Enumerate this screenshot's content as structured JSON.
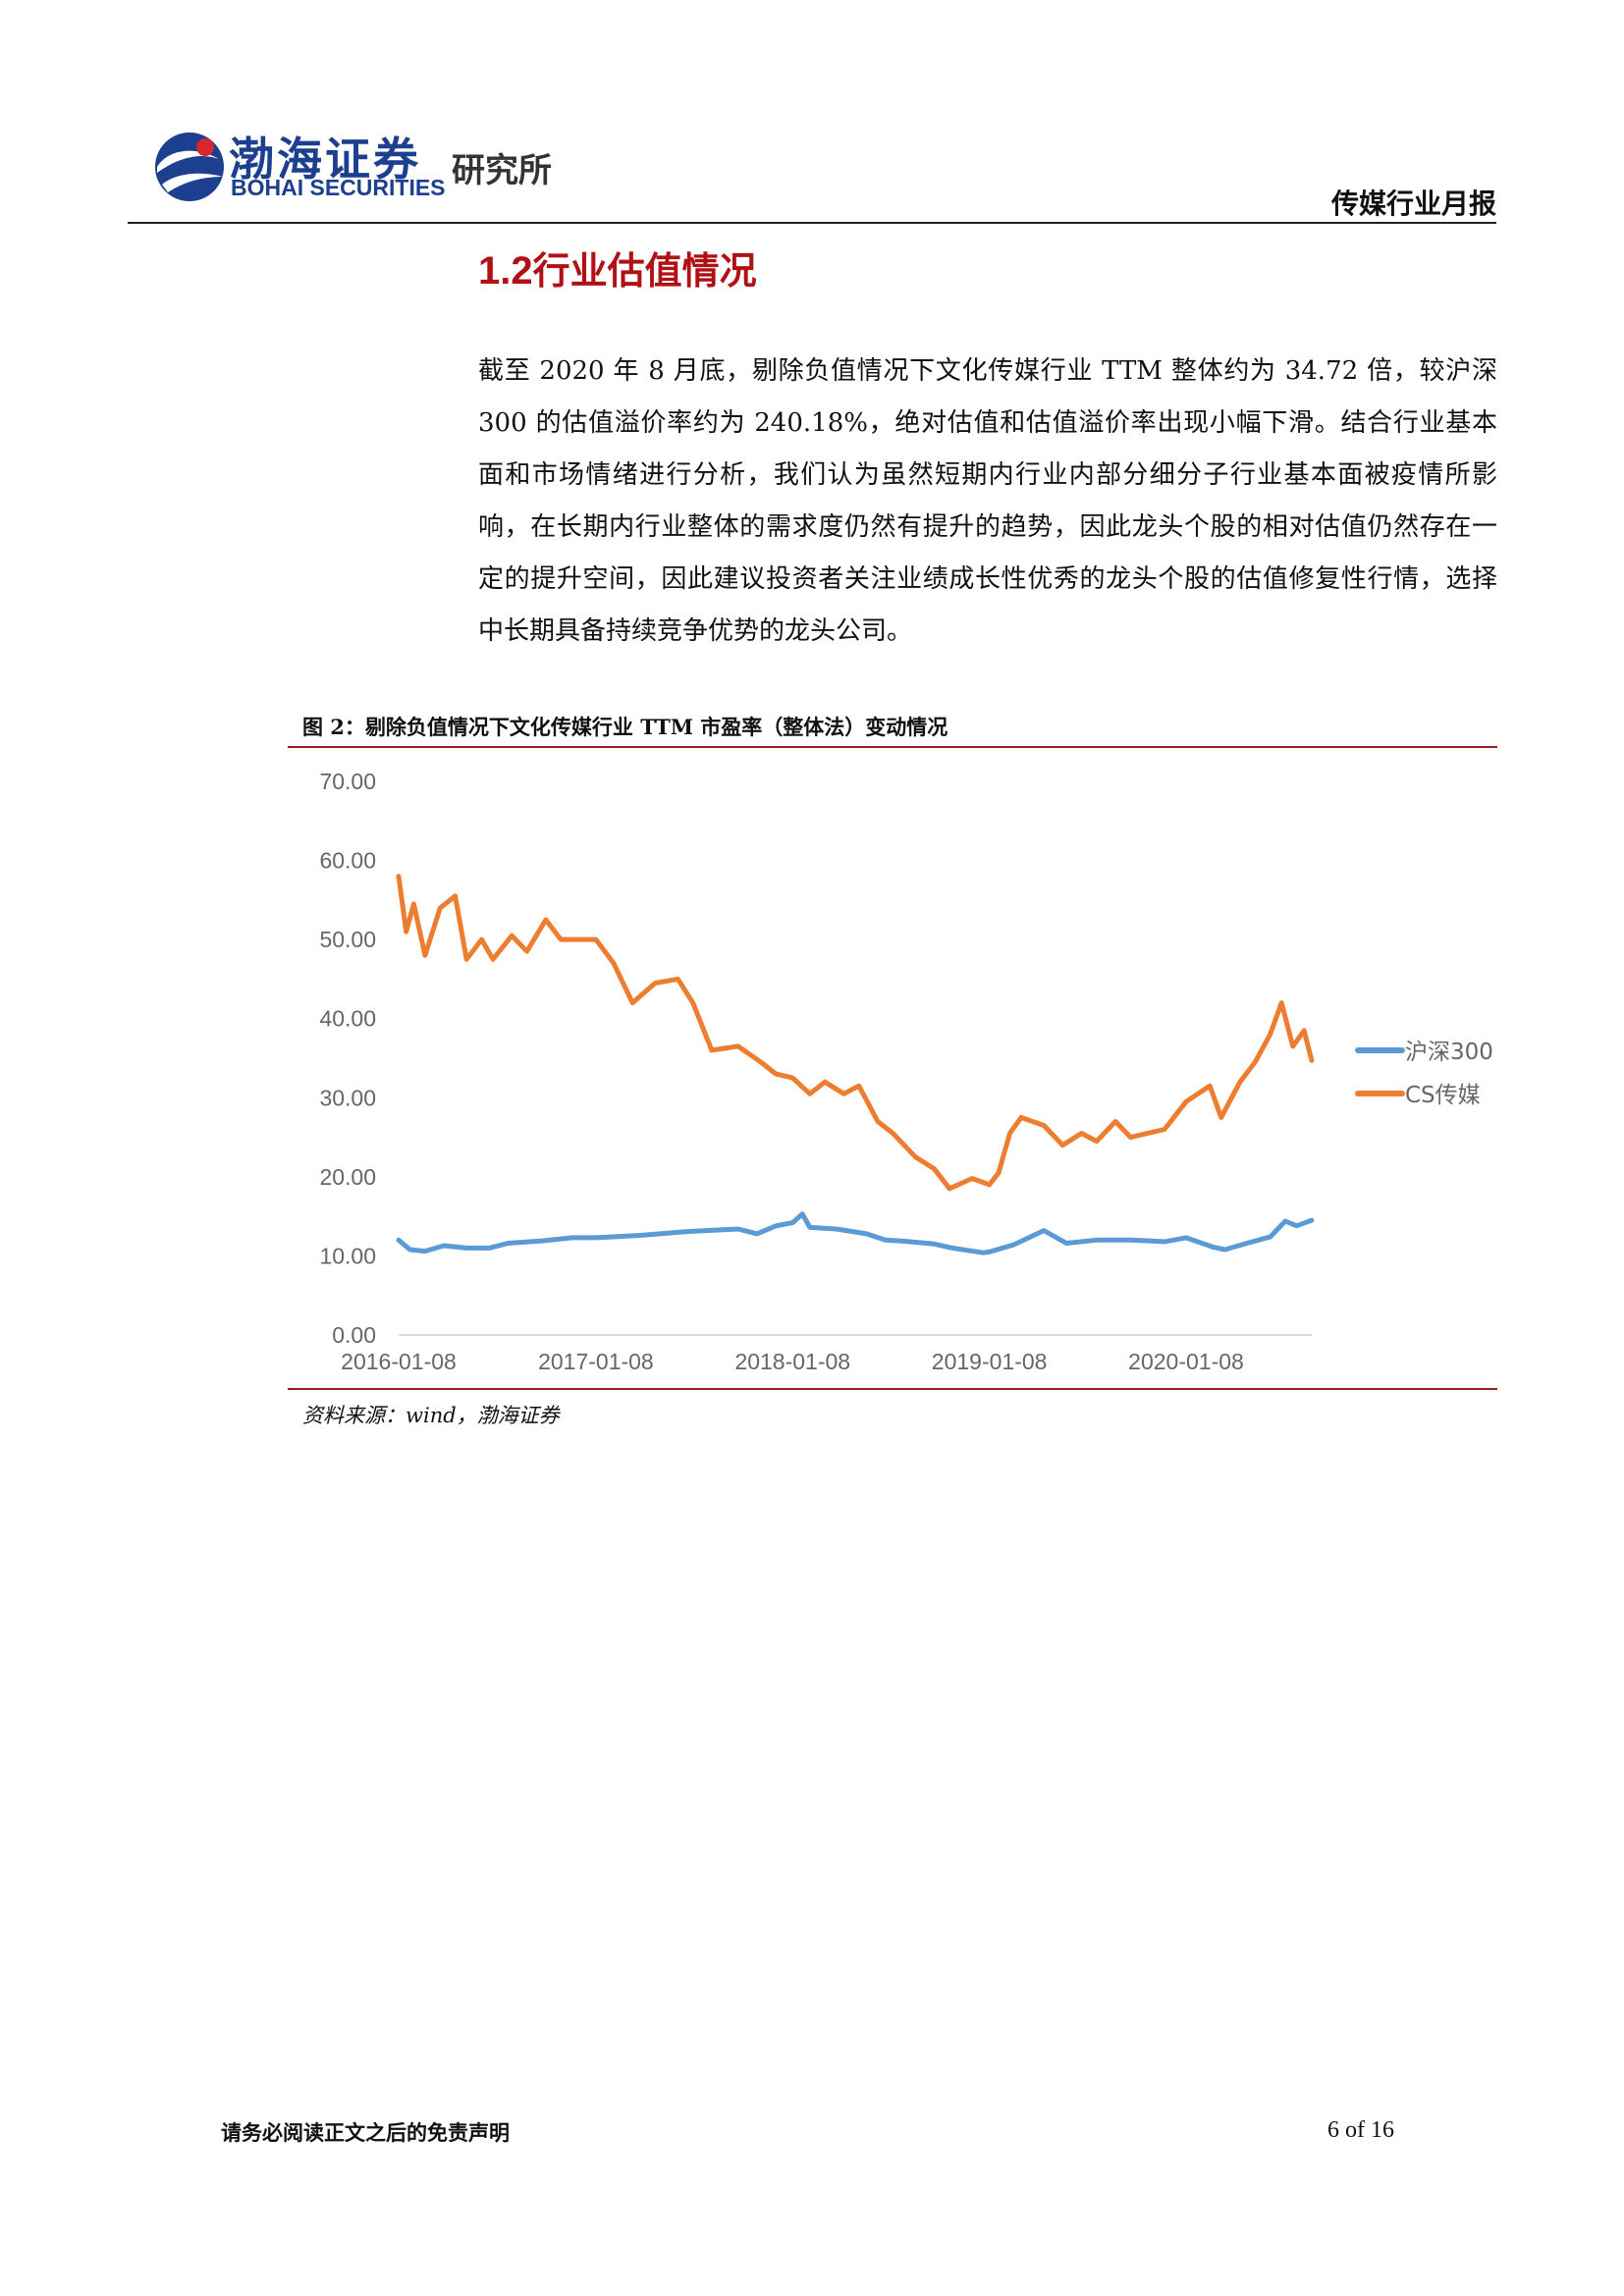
{
  "header": {
    "logo_cn": "渤海证券",
    "logo_en": "BOHAI SECURITIES",
    "institute": "研究所",
    "report_type": "传媒行业月报"
  },
  "section": {
    "number": "1.2",
    "title": "行业估值情况"
  },
  "paragraph": "截至 2020 年 8 月底，剔除负值情况下文化传媒行业 TTM 整体约为 34.72 倍，较沪深 300 的估值溢价率约为 240.18%，绝对估值和估值溢价率出现小幅下滑。结合行业基本面和市场情绪进行分析，我们认为虽然短期内行业内部分细分子行业基本面被疫情所影响，在长期内行业整体的需求度仍然有提升的趋势，因此龙头个股的相对估值仍然存在一定的提升空间，因此建议投资者关注业绩成长性优秀的龙头个股的估值修复性行情，选择中长期具备持续竞争优势的龙头公司。",
  "figure": {
    "title": "图 2：剔除负值情况下文化传媒行业 TTM 市盈率（整体法）变动情况",
    "source": "资料来源：wind，渤海证券"
  },
  "chart_data": {
    "type": "line",
    "title": "",
    "xlabel": "",
    "ylabel": "",
    "x_ticks": [
      "2016-01-08",
      "2017-01-08",
      "2018-01-08",
      "2019-01-08",
      "2020-01-08"
    ],
    "x_range": [
      "2016-01-08",
      "2020-08-28"
    ],
    "y_ticks": [
      "0.00",
      "10.00",
      "20.00",
      "30.00",
      "40.00",
      "50.00",
      "60.00",
      "70.00"
    ],
    "ylim": [
      0,
      70
    ],
    "grid": false,
    "legend_position": "right",
    "series": [
      {
        "name": "沪深300",
        "color": "#5b9bd5",
        "points": [
          [
            "2016-01-08",
            12.0
          ],
          [
            "2016-01-29",
            10.8
          ],
          [
            "2016-02-26",
            10.6
          ],
          [
            "2016-04-01",
            11.3
          ],
          [
            "2016-05-13",
            11.0
          ],
          [
            "2016-06-24",
            11.0
          ],
          [
            "2016-07-29",
            11.6
          ],
          [
            "2016-09-30",
            11.9
          ],
          [
            "2016-11-25",
            12.3
          ],
          [
            "2017-01-08",
            12.3
          ],
          [
            "2017-03-31",
            12.6
          ],
          [
            "2017-06-30",
            13.1
          ],
          [
            "2017-09-29",
            13.4
          ],
          [
            "2017-11-03",
            12.8
          ],
          [
            "2017-12-08",
            13.8
          ],
          [
            "2018-01-08",
            14.2
          ],
          [
            "2018-01-26",
            15.3
          ],
          [
            "2018-02-09",
            13.6
          ],
          [
            "2018-03-30",
            13.4
          ],
          [
            "2018-05-25",
            12.8
          ],
          [
            "2018-06-29",
            12.0
          ],
          [
            "2018-07-27",
            11.9
          ],
          [
            "2018-09-28",
            11.5
          ],
          [
            "2018-10-31",
            11.0
          ],
          [
            "2018-12-28",
            10.4
          ],
          [
            "2019-01-08",
            10.5
          ],
          [
            "2019-02-22",
            11.4
          ],
          [
            "2019-04-19",
            13.2
          ],
          [
            "2019-05-31",
            11.6
          ],
          [
            "2019-07-26",
            12.0
          ],
          [
            "2019-09-27",
            12.0
          ],
          [
            "2019-11-29",
            11.8
          ],
          [
            "2020-01-08",
            12.3
          ],
          [
            "2020-02-28",
            11.1
          ],
          [
            "2020-03-20",
            10.8
          ],
          [
            "2020-04-30",
            11.6
          ],
          [
            "2020-06-12",
            12.4
          ],
          [
            "2020-07-10",
            14.4
          ],
          [
            "2020-07-31",
            13.8
          ],
          [
            "2020-08-28",
            14.5
          ]
        ]
      },
      {
        "name": "CS传媒",
        "color": "#ed7d31",
        "points": [
          [
            "2016-01-08",
            58.0
          ],
          [
            "2016-01-22",
            51.0
          ],
          [
            "2016-02-05",
            54.5
          ],
          [
            "2016-02-26",
            48.0
          ],
          [
            "2016-03-25",
            54.0
          ],
          [
            "2016-04-22",
            55.5
          ],
          [
            "2016-05-13",
            47.5
          ],
          [
            "2016-06-10",
            50.0
          ],
          [
            "2016-07-01",
            47.5
          ],
          [
            "2016-08-05",
            50.5
          ],
          [
            "2016-09-02",
            48.5
          ],
          [
            "2016-10-07",
            52.5
          ],
          [
            "2016-11-04",
            50.0
          ],
          [
            "2017-01-08",
            50.0
          ],
          [
            "2017-02-10",
            47.0
          ],
          [
            "2017-03-17",
            42.0
          ],
          [
            "2017-04-28",
            44.5
          ],
          [
            "2017-06-09",
            45.0
          ],
          [
            "2017-07-07",
            42.0
          ],
          [
            "2017-08-11",
            36.0
          ],
          [
            "2017-09-29",
            36.5
          ],
          [
            "2017-11-10",
            34.5
          ],
          [
            "2017-12-08",
            33.0
          ],
          [
            "2018-01-08",
            32.5
          ],
          [
            "2018-02-09",
            30.5
          ],
          [
            "2018-03-09",
            32.0
          ],
          [
            "2018-04-13",
            30.5
          ],
          [
            "2018-05-11",
            31.5
          ],
          [
            "2018-06-15",
            27.0
          ],
          [
            "2018-07-13",
            25.5
          ],
          [
            "2018-08-24",
            22.5
          ],
          [
            "2018-09-28",
            21.0
          ],
          [
            "2018-10-26",
            18.5
          ],
          [
            "2018-12-07",
            19.8
          ],
          [
            "2019-01-08",
            19.0
          ],
          [
            "2019-01-25",
            20.5
          ],
          [
            "2019-02-15",
            25.5
          ],
          [
            "2019-03-08",
            27.5
          ],
          [
            "2019-04-19",
            26.5
          ],
          [
            "2019-05-24",
            24.0
          ],
          [
            "2019-06-28",
            25.5
          ],
          [
            "2019-07-26",
            24.5
          ],
          [
            "2019-08-30",
            27.0
          ],
          [
            "2019-09-27",
            25.0
          ],
          [
            "2019-11-29",
            26.0
          ],
          [
            "2020-01-08",
            29.5
          ],
          [
            "2020-02-21",
            31.5
          ],
          [
            "2020-03-13",
            27.5
          ],
          [
            "2020-04-17",
            32.0
          ],
          [
            "2020-05-15",
            34.5
          ],
          [
            "2020-06-12",
            38.0
          ],
          [
            "2020-07-03",
            42.0
          ],
          [
            "2020-07-24",
            36.5
          ],
          [
            "2020-08-14",
            38.5
          ],
          [
            "2020-08-28",
            34.72
          ]
        ]
      }
    ]
  },
  "footer": {
    "disclaimer": "请务必阅读正文之后的免责声明",
    "page": "6 of 16"
  }
}
